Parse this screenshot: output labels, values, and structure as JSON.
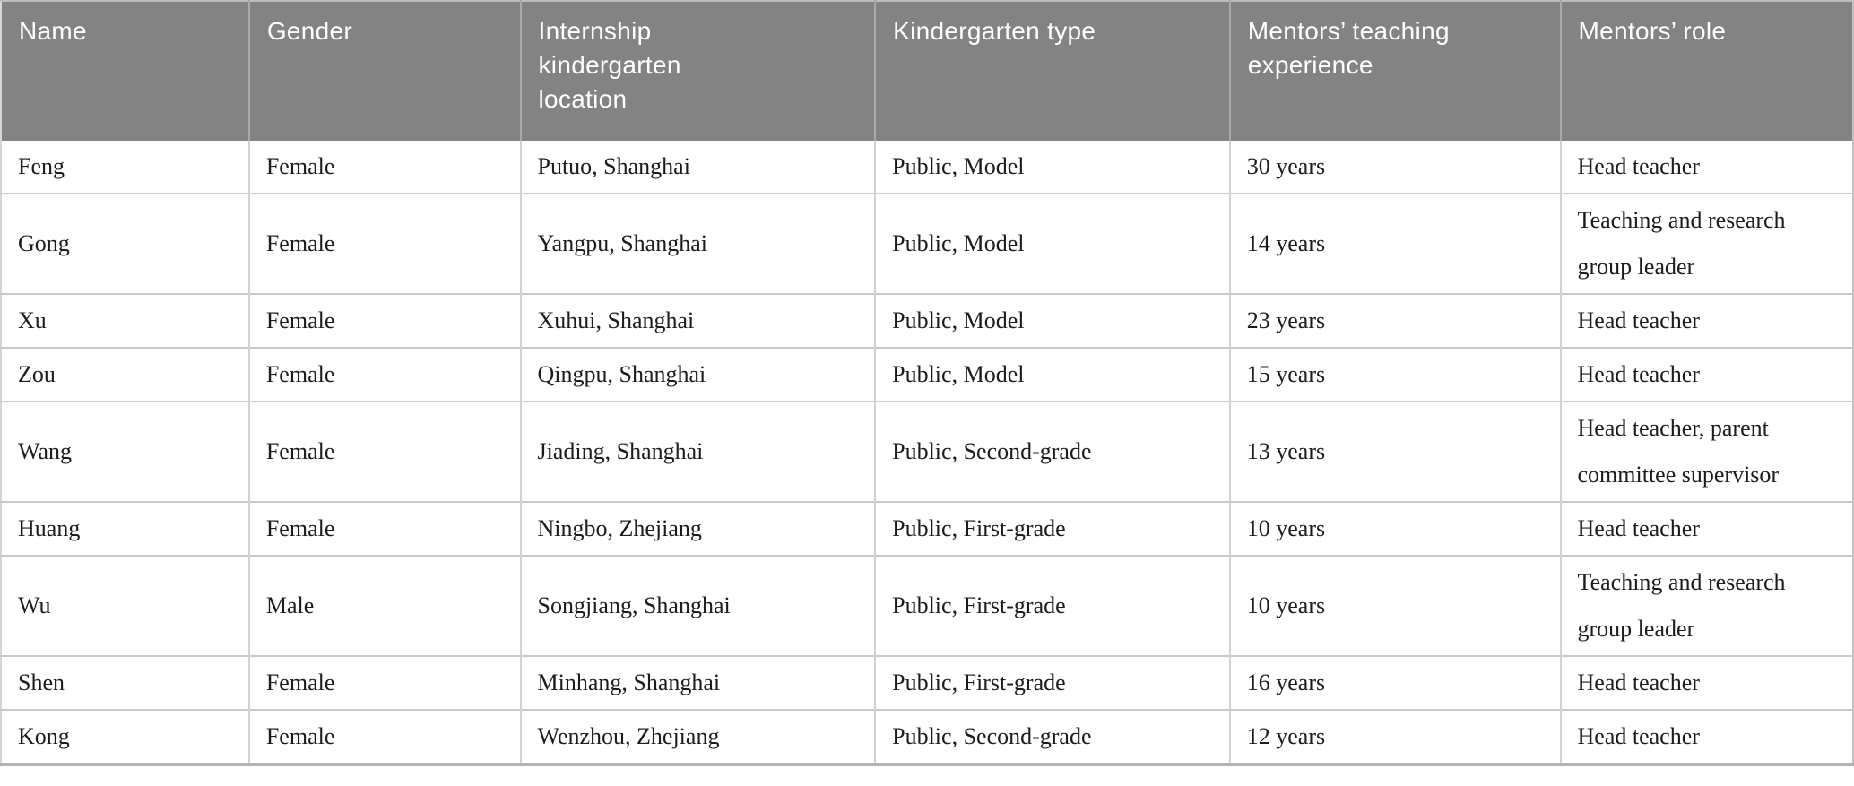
{
  "table": {
    "columns": [
      {
        "key": "name",
        "label": "Name"
      },
      {
        "key": "gender",
        "label": "Gender"
      },
      {
        "key": "location",
        "label": "Internship kindergarten location"
      },
      {
        "key": "type",
        "label": "Kindergarten type"
      },
      {
        "key": "experience",
        "label": "Mentors’ teaching experience"
      },
      {
        "key": "role",
        "label": "Mentors’ role"
      }
    ],
    "rows": [
      {
        "name": "Feng",
        "gender": "Female",
        "location": "Putuo, Shanghai",
        "type": "Public, Model",
        "experience": "30 years",
        "role": "Head teacher"
      },
      {
        "name": "Gong",
        "gender": "Female",
        "location": "Yangpu, Shanghai",
        "type": "Public, Model",
        "experience": "14 years",
        "role": "Teaching and research group leader"
      },
      {
        "name": "Xu",
        "gender": "Female",
        "location": "Xuhui, Shanghai",
        "type": "Public, Model",
        "experience": "23 years",
        "role": "Head teacher"
      },
      {
        "name": "Zou",
        "gender": "Female",
        "location": "Qingpu, Shanghai",
        "type": "Public, Model",
        "experience": "15 years",
        "role": "Head teacher"
      },
      {
        "name": "Wang",
        "gender": "Female",
        "location": "Jiading, Shanghai",
        "type": "Public, Second-grade",
        "experience": "13 years",
        "role": "Head teacher, parent committee supervisor"
      },
      {
        "name": "Huang",
        "gender": "Female",
        "location": "Ningbo, Zhejiang",
        "type": "Public, First-grade",
        "experience": "10 years",
        "role": "Head teacher"
      },
      {
        "name": "Wu",
        "gender": "Male",
        "location": "Songjiang, Shanghai",
        "type": "Public, First-grade",
        "experience": "10 years",
        "role": "Teaching and research group leader"
      },
      {
        "name": "Shen",
        "gender": "Female",
        "location": "Minhang, Shanghai",
        "type": "Public, First-grade",
        "experience": "16 years",
        "role": "Head teacher"
      },
      {
        "name": "Kong",
        "gender": "Female",
        "location": "Wenzhou, Zhejiang",
        "type": "Public, Second-grade",
        "experience": "12 years",
        "role": "Head teacher"
      }
    ]
  },
  "colors": {
    "header_bg": "#838383",
    "header_text": "#ffffff",
    "body_text": "#1c1c1c",
    "grid_line": "#c9c9c9"
  }
}
